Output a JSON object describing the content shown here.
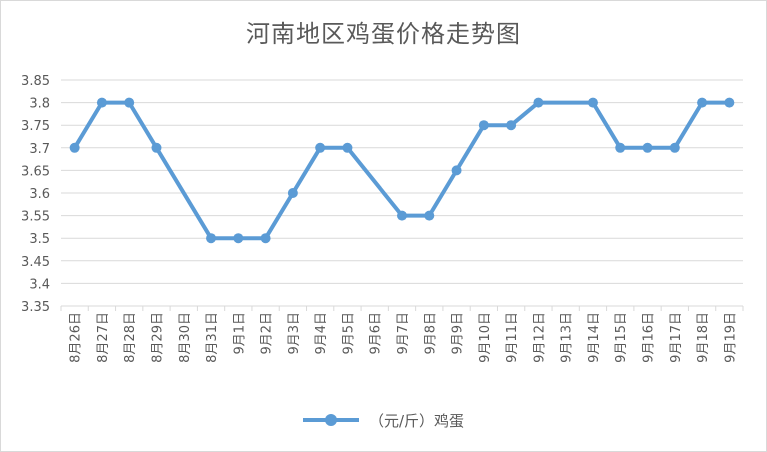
{
  "chart_data": {
    "type": "line",
    "title": "河南地区鸡蛋价格走势图",
    "xlabel": "",
    "ylabel": "",
    "categories": [
      "8月26日",
      "8月27日",
      "8月28日",
      "8月29日",
      "8月30日",
      "8月31日",
      "9月1日",
      "9月2日",
      "9月3日",
      "9月4日",
      "9月5日",
      "9月6日",
      "9月7日",
      "9月8日",
      "9月9日",
      "9月10日",
      "9月11日",
      "9月12日",
      "9月13日",
      "9月14日",
      "9月15日",
      "9月16日",
      "9月17日",
      "9月18日",
      "9月19日"
    ],
    "series": [
      {
        "name": "（元/斤）鸡蛋",
        "values": [
          3.7,
          3.8,
          3.8,
          3.7,
          null,
          3.5,
          3.5,
          3.5,
          3.6,
          3.7,
          3.7,
          null,
          3.55,
          3.55,
          3.65,
          3.75,
          3.75,
          3.8,
          null,
          3.8,
          3.7,
          3.7,
          3.7,
          3.8,
          3.8
        ]
      }
    ],
    "yticks": [
      "3.35",
      "3.4",
      "3.45",
      "3.5",
      "3.55",
      "3.6",
      "3.65",
      "3.7",
      "3.75",
      "3.8",
      "3.85"
    ],
    "ylim": [
      3.35,
      3.85
    ],
    "grid": true,
    "legend": "bottom",
    "colors": {
      "series": "#5b9bd5",
      "grid": "#d9d9d9",
      "text": "#595959"
    }
  }
}
